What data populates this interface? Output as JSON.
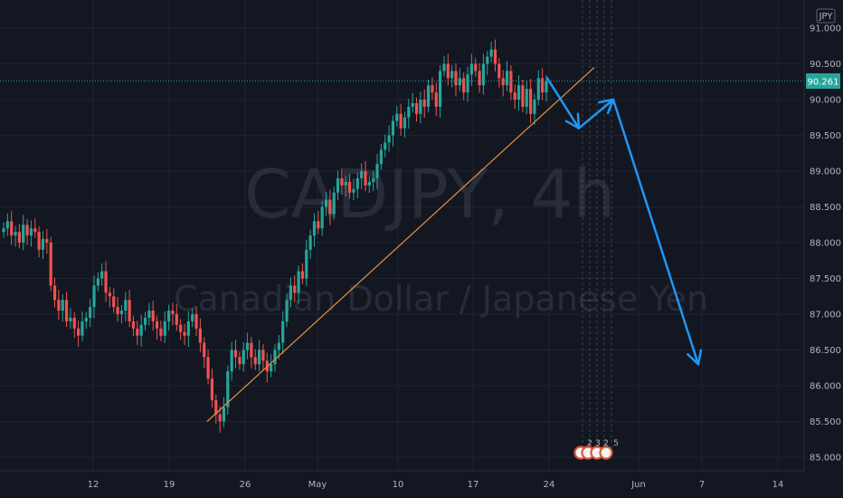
{
  "chart_data": {
    "type": "candlestick",
    "watermark": {
      "symbol": "CADJPY, 4h",
      "description": "Canadian Dollar / Japanese Yen"
    },
    "currency": "JPY",
    "last_price": "90.261",
    "y_ticks": [
      "91.000",
      "90.500",
      "90.000",
      "89.500",
      "89.000",
      "88.500",
      "88.000",
      "87.500",
      "87.000",
      "86.500",
      "86.000",
      "85.500",
      "85.000"
    ],
    "ylim": [
      84.95,
      91.2
    ],
    "x_ticks": [
      "12",
      "19",
      "26",
      "May",
      "10",
      "17",
      "24",
      "Jun",
      "7",
      "14"
    ],
    "grid": true,
    "trendline": {
      "from": [
        85.5
      ],
      "to": [
        90.45
      ]
    },
    "projection_price_path": [
      90.3,
      89.6,
      90.0,
      86.3
    ],
    "event_markers": [
      "2",
      "3",
      "2",
      "5"
    ],
    "series_close": [
      88.2,
      88.3,
      88.1,
      88.15,
      88.0,
      88.25,
      88.1,
      88.2,
      88.15,
      87.9,
      88.05,
      88.0,
      87.4,
      87.2,
      87.05,
      87.2,
      86.9,
      86.95,
      86.8,
      86.7,
      86.9,
      86.95,
      87.1,
      87.4,
      87.5,
      87.6,
      87.3,
      87.25,
      87.1,
      87.0,
      87.05,
      87.2,
      86.9,
      86.8,
      86.7,
      86.85,
      86.95,
      87.05,
      86.9,
      86.8,
      86.7,
      86.9,
      87.05,
      87.0,
      86.85,
      86.75,
      86.7,
      86.9,
      87.0,
      86.8,
      86.6,
      86.4,
      86.1,
      85.8,
      85.6,
      85.5,
      85.7,
      86.2,
      86.5,
      86.4,
      86.3,
      86.5,
      86.6,
      86.4,
      86.3,
      86.5,
      86.35,
      86.2,
      86.3,
      86.5,
      86.6,
      86.9,
      87.2,
      87.4,
      87.3,
      87.6,
      87.5,
      87.9,
      88.1,
      88.3,
      88.2,
      88.5,
      88.6,
      88.4,
      88.7,
      88.9,
      88.8,
      88.85,
      88.7,
      88.75,
      88.9,
      89.0,
      88.8,
      88.85,
      88.9,
      89.1,
      89.3,
      89.4,
      89.5,
      89.7,
      89.8,
      89.6,
      89.75,
      89.9,
      89.95,
      89.8,
      90.0,
      89.9,
      90.2,
      90.1,
      89.9,
      90.4,
      90.5,
      90.3,
      90.4,
      90.2,
      90.3,
      90.1,
      90.35,
      90.5,
      90.4,
      90.2,
      90.5,
      90.6,
      90.7,
      90.5,
      90.3,
      90.2,
      90.4,
      90.1,
      90.0,
      90.2,
      89.9,
      90.15,
      89.8,
      90.0,
      90.3,
      90.1,
      90.26
    ]
  }
}
